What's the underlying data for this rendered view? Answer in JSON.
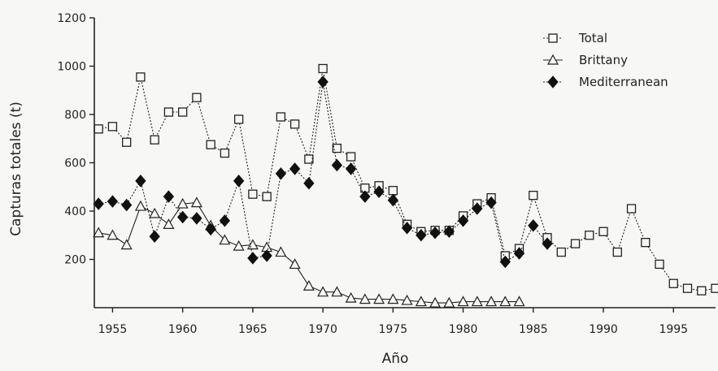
{
  "chart_data": {
    "type": "line",
    "title": "",
    "xlabel": "Año",
    "ylabel": "Capturas totales (t)",
    "xlim": [
      1953.7,
      1998
    ],
    "ylim": [
      0,
      1200
    ],
    "x_ticks": [
      1955,
      1960,
      1965,
      1970,
      1975,
      1980,
      1985,
      1990,
      1995
    ],
    "y_ticks": [
      200,
      400,
      600,
      800,
      1000,
      1200
    ],
    "legend_position": "top-right",
    "series": [
      {
        "name": "Total",
        "marker": "open-square",
        "line_style": "dotted",
        "points": [
          [
            1954,
            740
          ],
          [
            1955,
            750
          ],
          [
            1956,
            685
          ],
          [
            1957,
            955
          ],
          [
            1958,
            695
          ],
          [
            1959,
            810
          ],
          [
            1960,
            810
          ],
          [
            1961,
            870
          ],
          [
            1962,
            675
          ],
          [
            1963,
            640
          ],
          [
            1964,
            780
          ],
          [
            1965,
            470
          ],
          [
            1966,
            460
          ],
          [
            1967,
            790
          ],
          [
            1968,
            760
          ],
          [
            1969,
            615
          ],
          [
            1970,
            990
          ],
          [
            1971,
            660
          ],
          [
            1972,
            625
          ],
          [
            1973,
            495
          ],
          [
            1974,
            505
          ],
          [
            1975,
            485
          ],
          [
            1976,
            345
          ],
          [
            1977,
            315
          ],
          [
            1978,
            320
          ],
          [
            1979,
            320
          ],
          [
            1980,
            380
          ],
          [
            1981,
            430
          ],
          [
            1982,
            455
          ],
          [
            1983,
            215
          ],
          [
            1984,
            245
          ],
          [
            1985,
            465
          ],
          [
            1986,
            290
          ],
          [
            1987,
            230
          ],
          [
            1988,
            265
          ],
          [
            1989,
            300
          ],
          [
            1990,
            315
          ],
          [
            1991,
            230
          ],
          [
            1992,
            410
          ],
          [
            1993,
            270
          ],
          [
            1994,
            180
          ],
          [
            1995,
            100
          ],
          [
            1996,
            80
          ],
          [
            1997,
            70
          ],
          [
            1998,
            80
          ]
        ]
      },
      {
        "name": "Brittany",
        "marker": "open-triangle",
        "line_style": "solid",
        "points": [
          [
            1954,
            310
          ],
          [
            1955,
            300
          ],
          [
            1956,
            260
          ],
          [
            1957,
            420
          ],
          [
            1958,
            390
          ],
          [
            1959,
            345
          ],
          [
            1960,
            430
          ],
          [
            1961,
            435
          ],
          [
            1962,
            340
          ],
          [
            1963,
            280
          ],
          [
            1964,
            255
          ],
          [
            1965,
            260
          ],
          [
            1966,
            250
          ],
          [
            1967,
            230
          ],
          [
            1968,
            180
          ],
          [
            1969,
            90
          ],
          [
            1970,
            65
          ],
          [
            1971,
            65
          ],
          [
            1972,
            40
          ],
          [
            1973,
            35
          ],
          [
            1974,
            35
          ],
          [
            1975,
            35
          ],
          [
            1976,
            30
          ],
          [
            1977,
            25
          ],
          [
            1978,
            20
          ],
          [
            1979,
            20
          ],
          [
            1980,
            25
          ],
          [
            1981,
            25
          ],
          [
            1982,
            25
          ],
          [
            1983,
            25
          ],
          [
            1984,
            25
          ]
        ]
      },
      {
        "name": "Mediterranean",
        "marker": "filled-diamond",
        "line_style": "dotted",
        "points": [
          [
            1954,
            430
          ],
          [
            1955,
            440
          ],
          [
            1956,
            425
          ],
          [
            1957,
            525
          ],
          [
            1958,
            295
          ],
          [
            1959,
            460
          ],
          [
            1960,
            375
          ],
          [
            1961,
            370
          ],
          [
            1962,
            325
          ],
          [
            1963,
            360
          ],
          [
            1964,
            525
          ],
          [
            1965,
            205
          ],
          [
            1966,
            215
          ],
          [
            1967,
            555
          ],
          [
            1968,
            575
          ],
          [
            1969,
            515
          ],
          [
            1970,
            935
          ],
          [
            1971,
            590
          ],
          [
            1972,
            575
          ],
          [
            1973,
            460
          ],
          [
            1974,
            480
          ],
          [
            1975,
            445
          ],
          [
            1976,
            330
          ],
          [
            1977,
            300
          ],
          [
            1978,
            310
          ],
          [
            1979,
            315
          ],
          [
            1980,
            360
          ],
          [
            1981,
            410
          ],
          [
            1982,
            435
          ],
          [
            1983,
            190
          ],
          [
            1984,
            225
          ],
          [
            1985,
            340
          ],
          [
            1986,
            265
          ]
        ]
      }
    ]
  }
}
